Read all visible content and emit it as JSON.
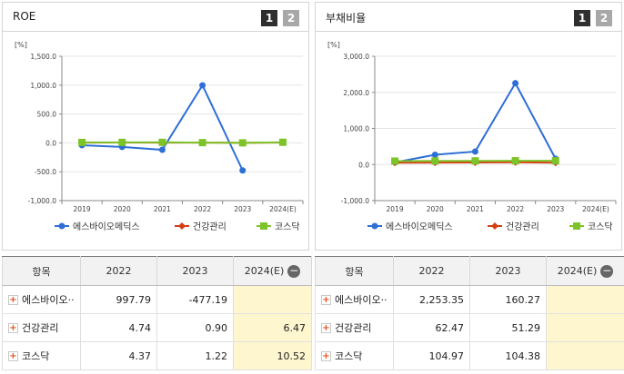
{
  "colors": {
    "series1": "#2e6fd6",
    "series2": "#d43f14",
    "series3": "#7cc42a",
    "highlight": "#fdf6cf"
  },
  "header_buttons": [
    "1",
    "2"
  ],
  "chart_data": [
    {
      "type": "line",
      "title": "ROE",
      "unit": "[%]",
      "x": [
        "2019",
        "2020",
        "2021",
        "2022",
        "2023",
        "2024(E)"
      ],
      "yticks": [
        "1,500.0",
        "1,000.0",
        "500.0",
        "0.0",
        "-500.0",
        "-1,000.0"
      ],
      "ylim": [
        -1000,
        1500
      ],
      "series": [
        {
          "name": "에스바이오메딕스",
          "values": [
            -40,
            -70,
            -120,
            997.79,
            -477.19,
            null
          ]
        },
        {
          "name": "건강관리",
          "values": [
            5,
            6,
            5,
            4.74,
            0.9,
            6.47
          ]
        },
        {
          "name": "코스닥",
          "values": [
            8,
            9,
            10,
            4.37,
            1.22,
            10.52
          ]
        }
      ]
    },
    {
      "type": "line",
      "title": "부채비율",
      "unit": "[%]",
      "x": [
        "2019",
        "2020",
        "2021",
        "2022",
        "2023",
        "2024(E)"
      ],
      "yticks": [
        "3,000.0",
        "2,000.0",
        "1,000.0",
        "0.0",
        "-1,000.0"
      ],
      "ylim": [
        -1000,
        3000
      ],
      "series": [
        {
          "name": "에스바이오메딕스",
          "values": [
            60,
            270,
            360,
            2253.35,
            160.27,
            null
          ]
        },
        {
          "name": "건강관리",
          "values": [
            50,
            55,
            58,
            62.47,
            51.29,
            null
          ]
        },
        {
          "name": "코스닥",
          "values": [
            95,
            100,
            102,
            104.97,
            104.38,
            null
          ]
        }
      ]
    }
  ],
  "tables": [
    {
      "headers": [
        "항목",
        "2022",
        "2023",
        "2024(E)"
      ],
      "rows": [
        {
          "label": "에스바이오···",
          "values": [
            "997.79",
            "-477.19",
            ""
          ]
        },
        {
          "label": "건강관리",
          "values": [
            "4.74",
            "0.90",
            "6.47"
          ]
        },
        {
          "label": "코스닥",
          "values": [
            "4.37",
            "1.22",
            "10.52"
          ]
        }
      ]
    },
    {
      "headers": [
        "항목",
        "2022",
        "2023",
        "2024(E)"
      ],
      "rows": [
        {
          "label": "에스바이오···",
          "values": [
            "2,253.35",
            "160.27",
            ""
          ]
        },
        {
          "label": "건강관리",
          "values": [
            "62.47",
            "51.29",
            ""
          ]
        },
        {
          "label": "코스닥",
          "values": [
            "104.97",
            "104.38",
            ""
          ]
        }
      ]
    }
  ]
}
